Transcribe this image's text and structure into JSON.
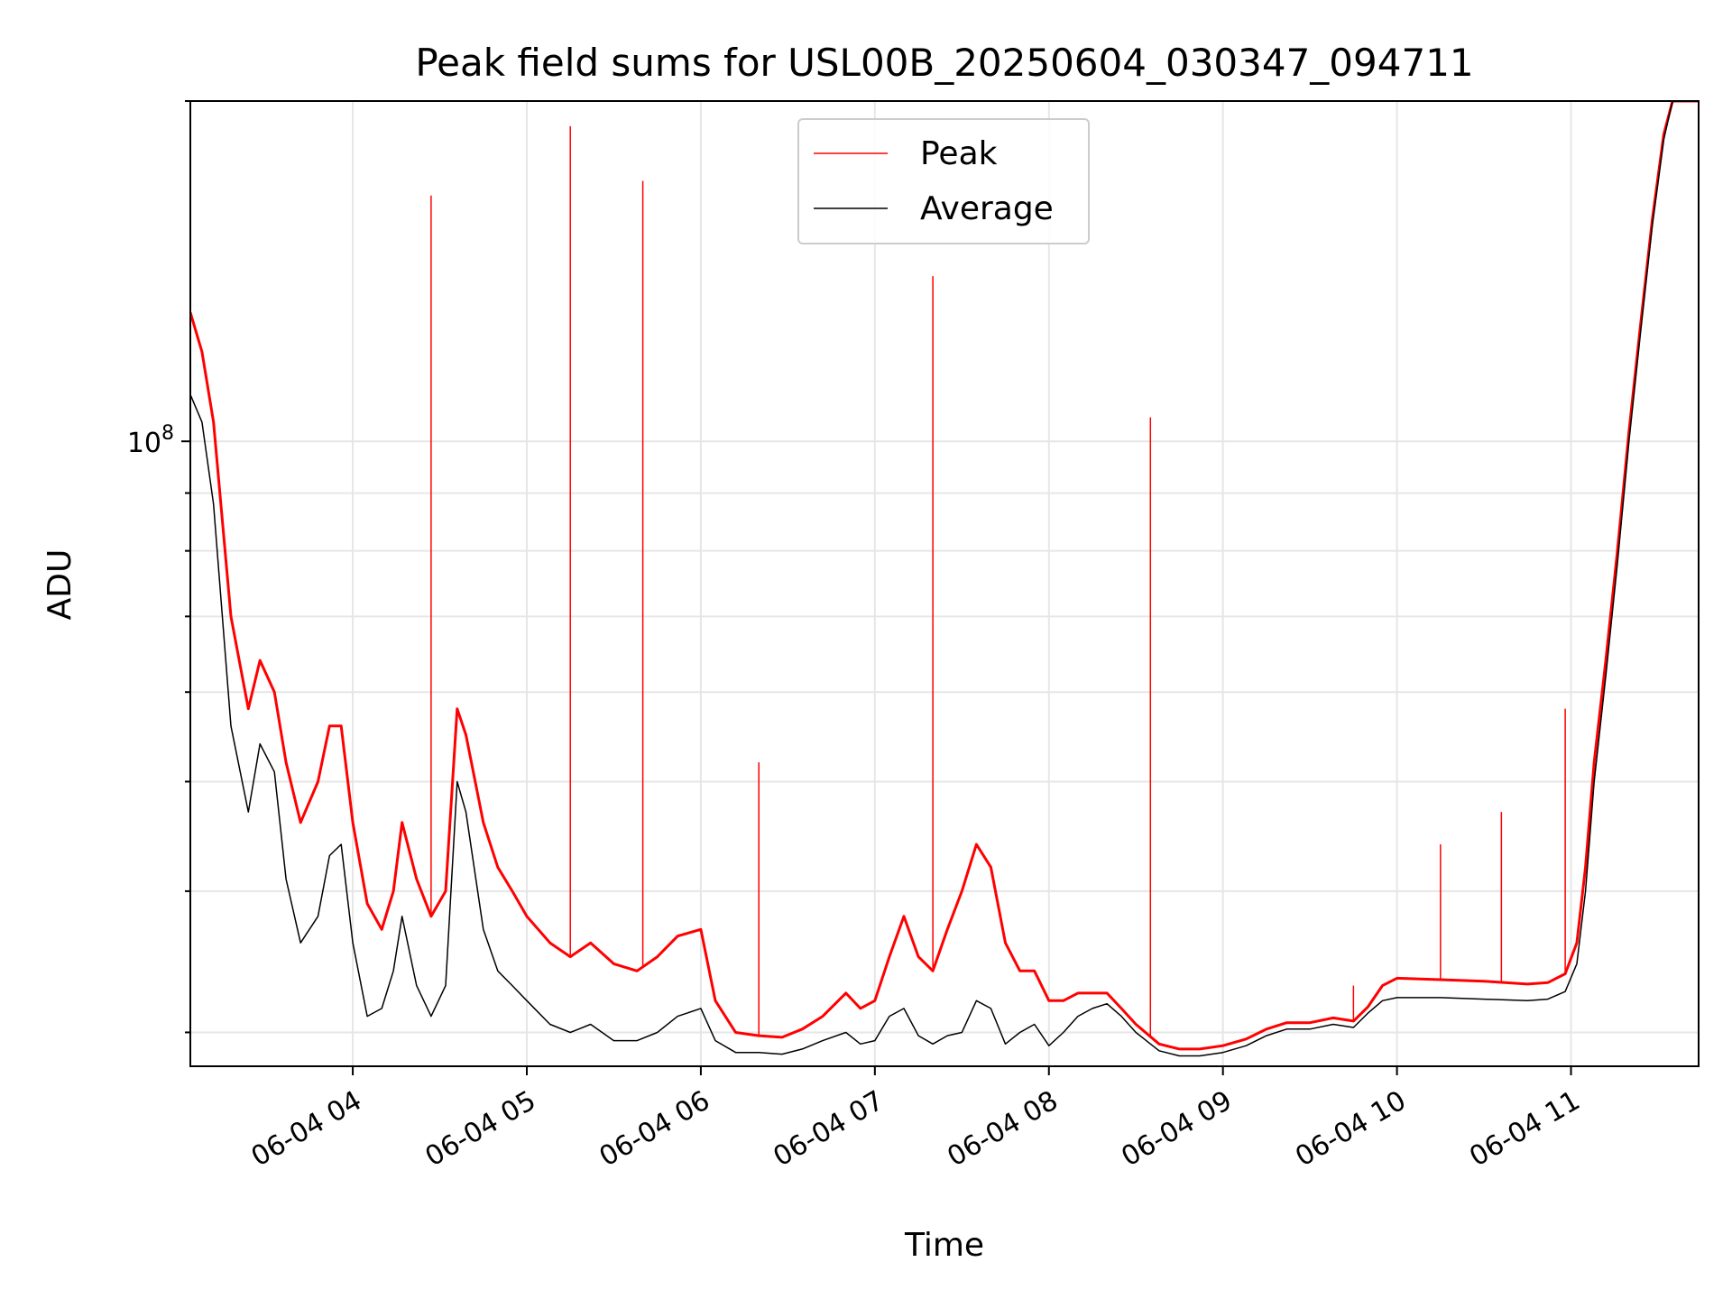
{
  "chart_data": {
    "type": "line",
    "title": "Peak field sums for USL00B_20250604_030347_094711",
    "xlabel": "Time",
    "ylabel": "ADU",
    "yscale": "log",
    "xlim": [
      "2025-06-04 03:04",
      "2025-06-04 11:44"
    ],
    "ylim": [
      28000000,
      200000000
    ],
    "x_ticks": [
      "06-04 04",
      "06-04 05",
      "06-04 06",
      "06-04 07",
      "06-04 08",
      "06-04 09",
      "06-04 10",
      "06-04 11"
    ],
    "y_ticks": [
      {
        "value": 100000000,
        "base": "10",
        "exponent": "8"
      }
    ],
    "grid": true,
    "legend": {
      "placement": "upper center"
    },
    "colors": {
      "Peak": "#ff0000",
      "Average": "#000000"
    },
    "series": [
      {
        "name": "Average",
        "x": [
          "2025-06-04 03:04",
          "2025-06-04 03:08",
          "2025-06-04 03:12",
          "2025-06-04 03:18",
          "2025-06-04 03:24",
          "2025-06-04 03:28",
          "2025-06-04 03:33",
          "2025-06-04 03:37",
          "2025-06-04 03:42",
          "2025-06-04 03:48",
          "2025-06-04 03:52",
          "2025-06-04 03:56",
          "2025-06-04 04:00",
          "2025-06-04 04:05",
          "2025-06-04 04:10",
          "2025-06-04 04:14",
          "2025-06-04 04:17",
          "2025-06-04 04:22",
          "2025-06-04 04:27",
          "2025-06-04 04:32",
          "2025-06-04 04:36",
          "2025-06-04 04:39",
          "2025-06-04 04:45",
          "2025-06-04 04:50",
          "2025-06-04 04:55",
          "2025-06-04 05:00",
          "2025-06-04 05:08",
          "2025-06-04 05:15",
          "2025-06-04 05:22",
          "2025-06-04 05:30",
          "2025-06-04 05:38",
          "2025-06-04 05:45",
          "2025-06-04 05:52",
          "2025-06-04 06:00",
          "2025-06-04 06:05",
          "2025-06-04 06:12",
          "2025-06-04 06:20",
          "2025-06-04 06:28",
          "2025-06-04 06:35",
          "2025-06-04 06:42",
          "2025-06-04 06:50",
          "2025-06-04 06:55",
          "2025-06-04 07:00",
          "2025-06-04 07:05",
          "2025-06-04 07:10",
          "2025-06-04 07:15",
          "2025-06-04 07:20",
          "2025-06-04 07:25",
          "2025-06-04 07:30",
          "2025-06-04 07:35",
          "2025-06-04 07:40",
          "2025-06-04 07:45",
          "2025-06-04 07:50",
          "2025-06-04 07:55",
          "2025-06-04 08:00",
          "2025-06-04 08:05",
          "2025-06-04 08:10",
          "2025-06-04 08:15",
          "2025-06-04 08:20",
          "2025-06-04 08:25",
          "2025-06-04 08:30",
          "2025-06-04 08:38",
          "2025-06-04 08:45",
          "2025-06-04 08:52",
          "2025-06-04 09:00",
          "2025-06-04 09:08",
          "2025-06-04 09:15",
          "2025-06-04 09:22",
          "2025-06-04 09:30",
          "2025-06-04 09:38",
          "2025-06-04 09:45",
          "2025-06-04 09:50",
          "2025-06-04 09:55",
          "2025-06-04 10:00",
          "2025-06-04 10:15",
          "2025-06-04 10:30",
          "2025-06-04 10:45",
          "2025-06-04 10:52",
          "2025-06-04 10:58",
          "2025-06-04 11:02",
          "2025-06-04 11:05",
          "2025-06-04 11:08",
          "2025-06-04 11:12",
          "2025-06-04 11:16",
          "2025-06-04 11:20",
          "2025-06-04 11:24",
          "2025-06-04 11:28",
          "2025-06-04 11:32",
          "2025-06-04 11:35",
          "2025-06-04 11:38",
          "2025-06-04 11:44"
        ],
        "values": [
          110000000,
          104000000,
          88000000,
          56000000,
          47000000,
          54000000,
          51000000,
          41000000,
          36000000,
          38000000,
          43000000,
          44000000,
          36000000,
          31000000,
          31500000,
          34000000,
          38000000,
          33000000,
          31000000,
          33000000,
          50000000,
          47000000,
          37000000,
          34000000,
          33000000,
          32000000,
          30500000,
          30000000,
          30500000,
          29500000,
          29500000,
          30000000,
          31000000,
          31500000,
          29500000,
          28800000,
          28800000,
          28700000,
          29000000,
          29500000,
          30000000,
          29300000,
          29500000,
          31000000,
          31500000,
          29800000,
          29300000,
          29800000,
          30000000,
          32000000,
          31500000,
          29300000,
          30000000,
          30500000,
          29200000,
          30000000,
          31000000,
          31500000,
          31800000,
          31000000,
          30000000,
          28900000,
          28600000,
          28600000,
          28800000,
          29200000,
          29800000,
          30200000,
          30200000,
          30500000,
          30300000,
          31200000,
          32000000,
          32200000,
          32200000,
          32100000,
          32000000,
          32100000,
          32600000,
          34500000,
          40000000,
          50000000,
          62000000,
          78000000,
          100000000,
          125000000,
          155000000,
          185000000,
          200000000,
          200000000,
          200000000
        ]
      },
      {
        "name": "Peak",
        "x": [
          "2025-06-04 03:04",
          "2025-06-04 03:08",
          "2025-06-04 03:12",
          "2025-06-04 03:18",
          "2025-06-04 03:24",
          "2025-06-04 03:28",
          "2025-06-04 03:33",
          "2025-06-04 03:37",
          "2025-06-04 03:42",
          "2025-06-04 03:48",
          "2025-06-04 03:52",
          "2025-06-04 03:56",
          "2025-06-04 04:00",
          "2025-06-04 04:05",
          "2025-06-04 04:10",
          "2025-06-04 04:14",
          "2025-06-04 04:17",
          "2025-06-04 04:22",
          "2025-06-04 04:27",
          "2025-06-04 04:32",
          "2025-06-04 04:36",
          "2025-06-04 04:39",
          "2025-06-04 04:45",
          "2025-06-04 04:50",
          "2025-06-04 04:55",
          "2025-06-04 05:00",
          "2025-06-04 05:08",
          "2025-06-04 05:15",
          "2025-06-04 05:22",
          "2025-06-04 05:30",
          "2025-06-04 05:38",
          "2025-06-04 05:45",
          "2025-06-04 05:52",
          "2025-06-04 06:00",
          "2025-06-04 06:05",
          "2025-06-04 06:12",
          "2025-06-04 06:20",
          "2025-06-04 06:28",
          "2025-06-04 06:35",
          "2025-06-04 06:42",
          "2025-06-04 06:50",
          "2025-06-04 06:55",
          "2025-06-04 07:00",
          "2025-06-04 07:05",
          "2025-06-04 07:10",
          "2025-06-04 07:15",
          "2025-06-04 07:20",
          "2025-06-04 07:25",
          "2025-06-04 07:30",
          "2025-06-04 07:35",
          "2025-06-04 07:40",
          "2025-06-04 07:45",
          "2025-06-04 07:50",
          "2025-06-04 07:55",
          "2025-06-04 08:00",
          "2025-06-04 08:05",
          "2025-06-04 08:10",
          "2025-06-04 08:15",
          "2025-06-04 08:20",
          "2025-06-04 08:25",
          "2025-06-04 08:30",
          "2025-06-04 08:38",
          "2025-06-04 08:45",
          "2025-06-04 08:52",
          "2025-06-04 09:00",
          "2025-06-04 09:08",
          "2025-06-04 09:15",
          "2025-06-04 09:22",
          "2025-06-04 09:30",
          "2025-06-04 09:38",
          "2025-06-04 09:45",
          "2025-06-04 09:50",
          "2025-06-04 09:55",
          "2025-06-04 10:00",
          "2025-06-04 10:15",
          "2025-06-04 10:30",
          "2025-06-04 10:45",
          "2025-06-04 10:52",
          "2025-06-04 10:58",
          "2025-06-04 11:02",
          "2025-06-04 11:05",
          "2025-06-04 11:08",
          "2025-06-04 11:12",
          "2025-06-04 11:16",
          "2025-06-04 11:20",
          "2025-06-04 11:24",
          "2025-06-04 11:28",
          "2025-06-04 11:32",
          "2025-06-04 11:35",
          "2025-06-04 11:38",
          "2025-06-04 11:44"
        ],
        "values": [
          130000000,
          120000000,
          104000000,
          70000000,
          58000000,
          64000000,
          60000000,
          52000000,
          46000000,
          50000000,
          56000000,
          56000000,
          46000000,
          39000000,
          37000000,
          40000000,
          46000000,
          41000000,
          38000000,
          40000000,
          58000000,
          55000000,
          46000000,
          42000000,
          40000000,
          38000000,
          36000000,
          35000000,
          36000000,
          34500000,
          34000000,
          35000000,
          36500000,
          37000000,
          32000000,
          30000000,
          29800000,
          29700000,
          30200000,
          31000000,
          32500000,
          31500000,
          32000000,
          35000000,
          38000000,
          35000000,
          34000000,
          37000000,
          40000000,
          44000000,
          42000000,
          36000000,
          34000000,
          34000000,
          32000000,
          32000000,
          32500000,
          32500000,
          32500000,
          31500000,
          30500000,
          29300000,
          29000000,
          29000000,
          29200000,
          29600000,
          30200000,
          30600000,
          30600000,
          30900000,
          30700000,
          31600000,
          33000000,
          33500000,
          33400000,
          33300000,
          33100000,
          33200000,
          33800000,
          36000000,
          42000000,
          52000000,
          64000000,
          80000000,
          102000000,
          127000000,
          157000000,
          187000000,
          200000000,
          200000000,
          200000000
        ]
      }
    ],
    "spikes": [
      {
        "x": "2025-06-04 04:27",
        "y": 165000000
      },
      {
        "x": "2025-06-04 05:15",
        "y": 190000000
      },
      {
        "x": "2025-06-04 05:40",
        "y": 170000000
      },
      {
        "x": "2025-06-04 06:20",
        "y": 52000000
      },
      {
        "x": "2025-06-04 07:20",
        "y": 140000000
      },
      {
        "x": "2025-06-04 08:35",
        "y": 105000000
      },
      {
        "x": "2025-06-04 09:45",
        "y": 33000000
      },
      {
        "x": "2025-06-04 10:15",
        "y": 44000000
      },
      {
        "x": "2025-06-04 10:36",
        "y": 47000000
      },
      {
        "x": "2025-06-04 10:58",
        "y": 58000000
      }
    ]
  }
}
